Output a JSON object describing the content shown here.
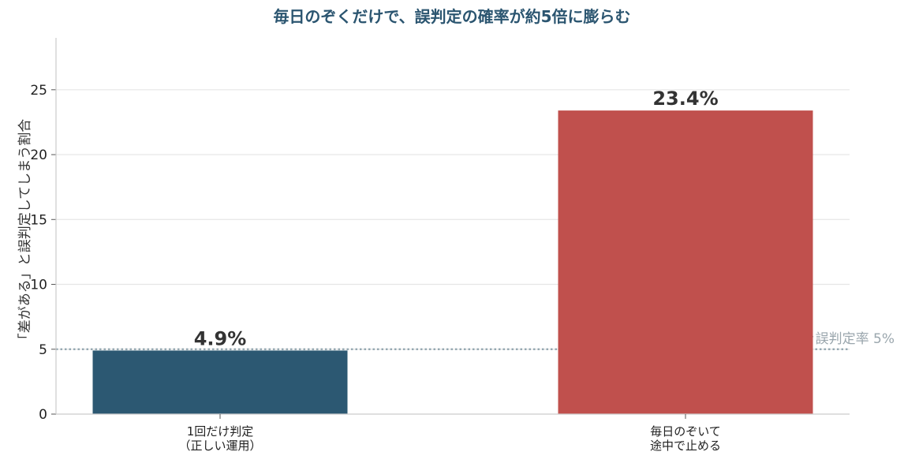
{
  "chart_data": {
    "type": "bar",
    "title": "毎日のぞくだけで、誤判定の確率が約5倍に膨らむ",
    "ylabel": "「差がある」と誤判定してしまう割合",
    "xlabel": "",
    "categories": [
      [
        "1回だけ判定",
        "（正しい運用）"
      ],
      [
        "毎日のぞいて",
        "途中で止める"
      ]
    ],
    "values": [
      4.9,
      23.4
    ],
    "data_labels": [
      "4.9%",
      "23.4%"
    ],
    "colors": [
      "#2c5872",
      "#c0504d"
    ],
    "ylim": [
      0,
      29
    ],
    "yticks": [
      0,
      5,
      10,
      15,
      20,
      25
    ],
    "grid": true,
    "reference_line": {
      "value": 5,
      "label": "本来あるべき誤判定率 5%",
      "color": "#8fa3ad"
    }
  }
}
